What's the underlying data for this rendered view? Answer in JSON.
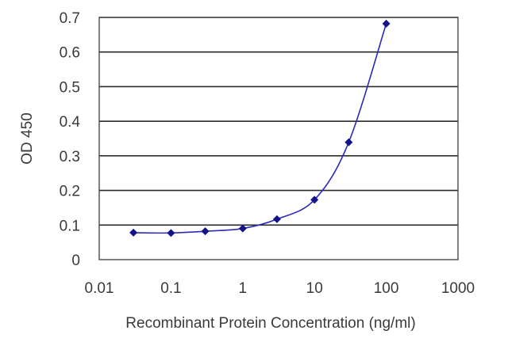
{
  "chart_data": {
    "type": "scatter",
    "xlabel": "Recombinant Protein Concentration (ng/ml)",
    "ylabel": "OD 450",
    "x_scale": "log",
    "xlim": [
      0.01,
      1000
    ],
    "ylim": [
      0,
      0.7
    ],
    "x_ticks": [
      "0.01",
      "0.1",
      "1",
      "10",
      "100",
      "1000"
    ],
    "y_ticks": [
      "0",
      "0.1",
      "0.2",
      "0.3",
      "0.4",
      "0.5",
      "0.6",
      "0.7"
    ],
    "grid": "horizontal",
    "fit_line": true,
    "series": [
      {
        "x": [
          0.03,
          0.1,
          0.3,
          1,
          3,
          10,
          30,
          100
        ],
        "y": [
          0.078,
          0.077,
          0.082,
          0.09,
          0.117,
          0.173,
          0.339,
          0.682
        ]
      }
    ],
    "colors": {
      "line": "#2b2bb8",
      "marker": "#12128a",
      "grid": "#2a2a2a"
    }
  }
}
